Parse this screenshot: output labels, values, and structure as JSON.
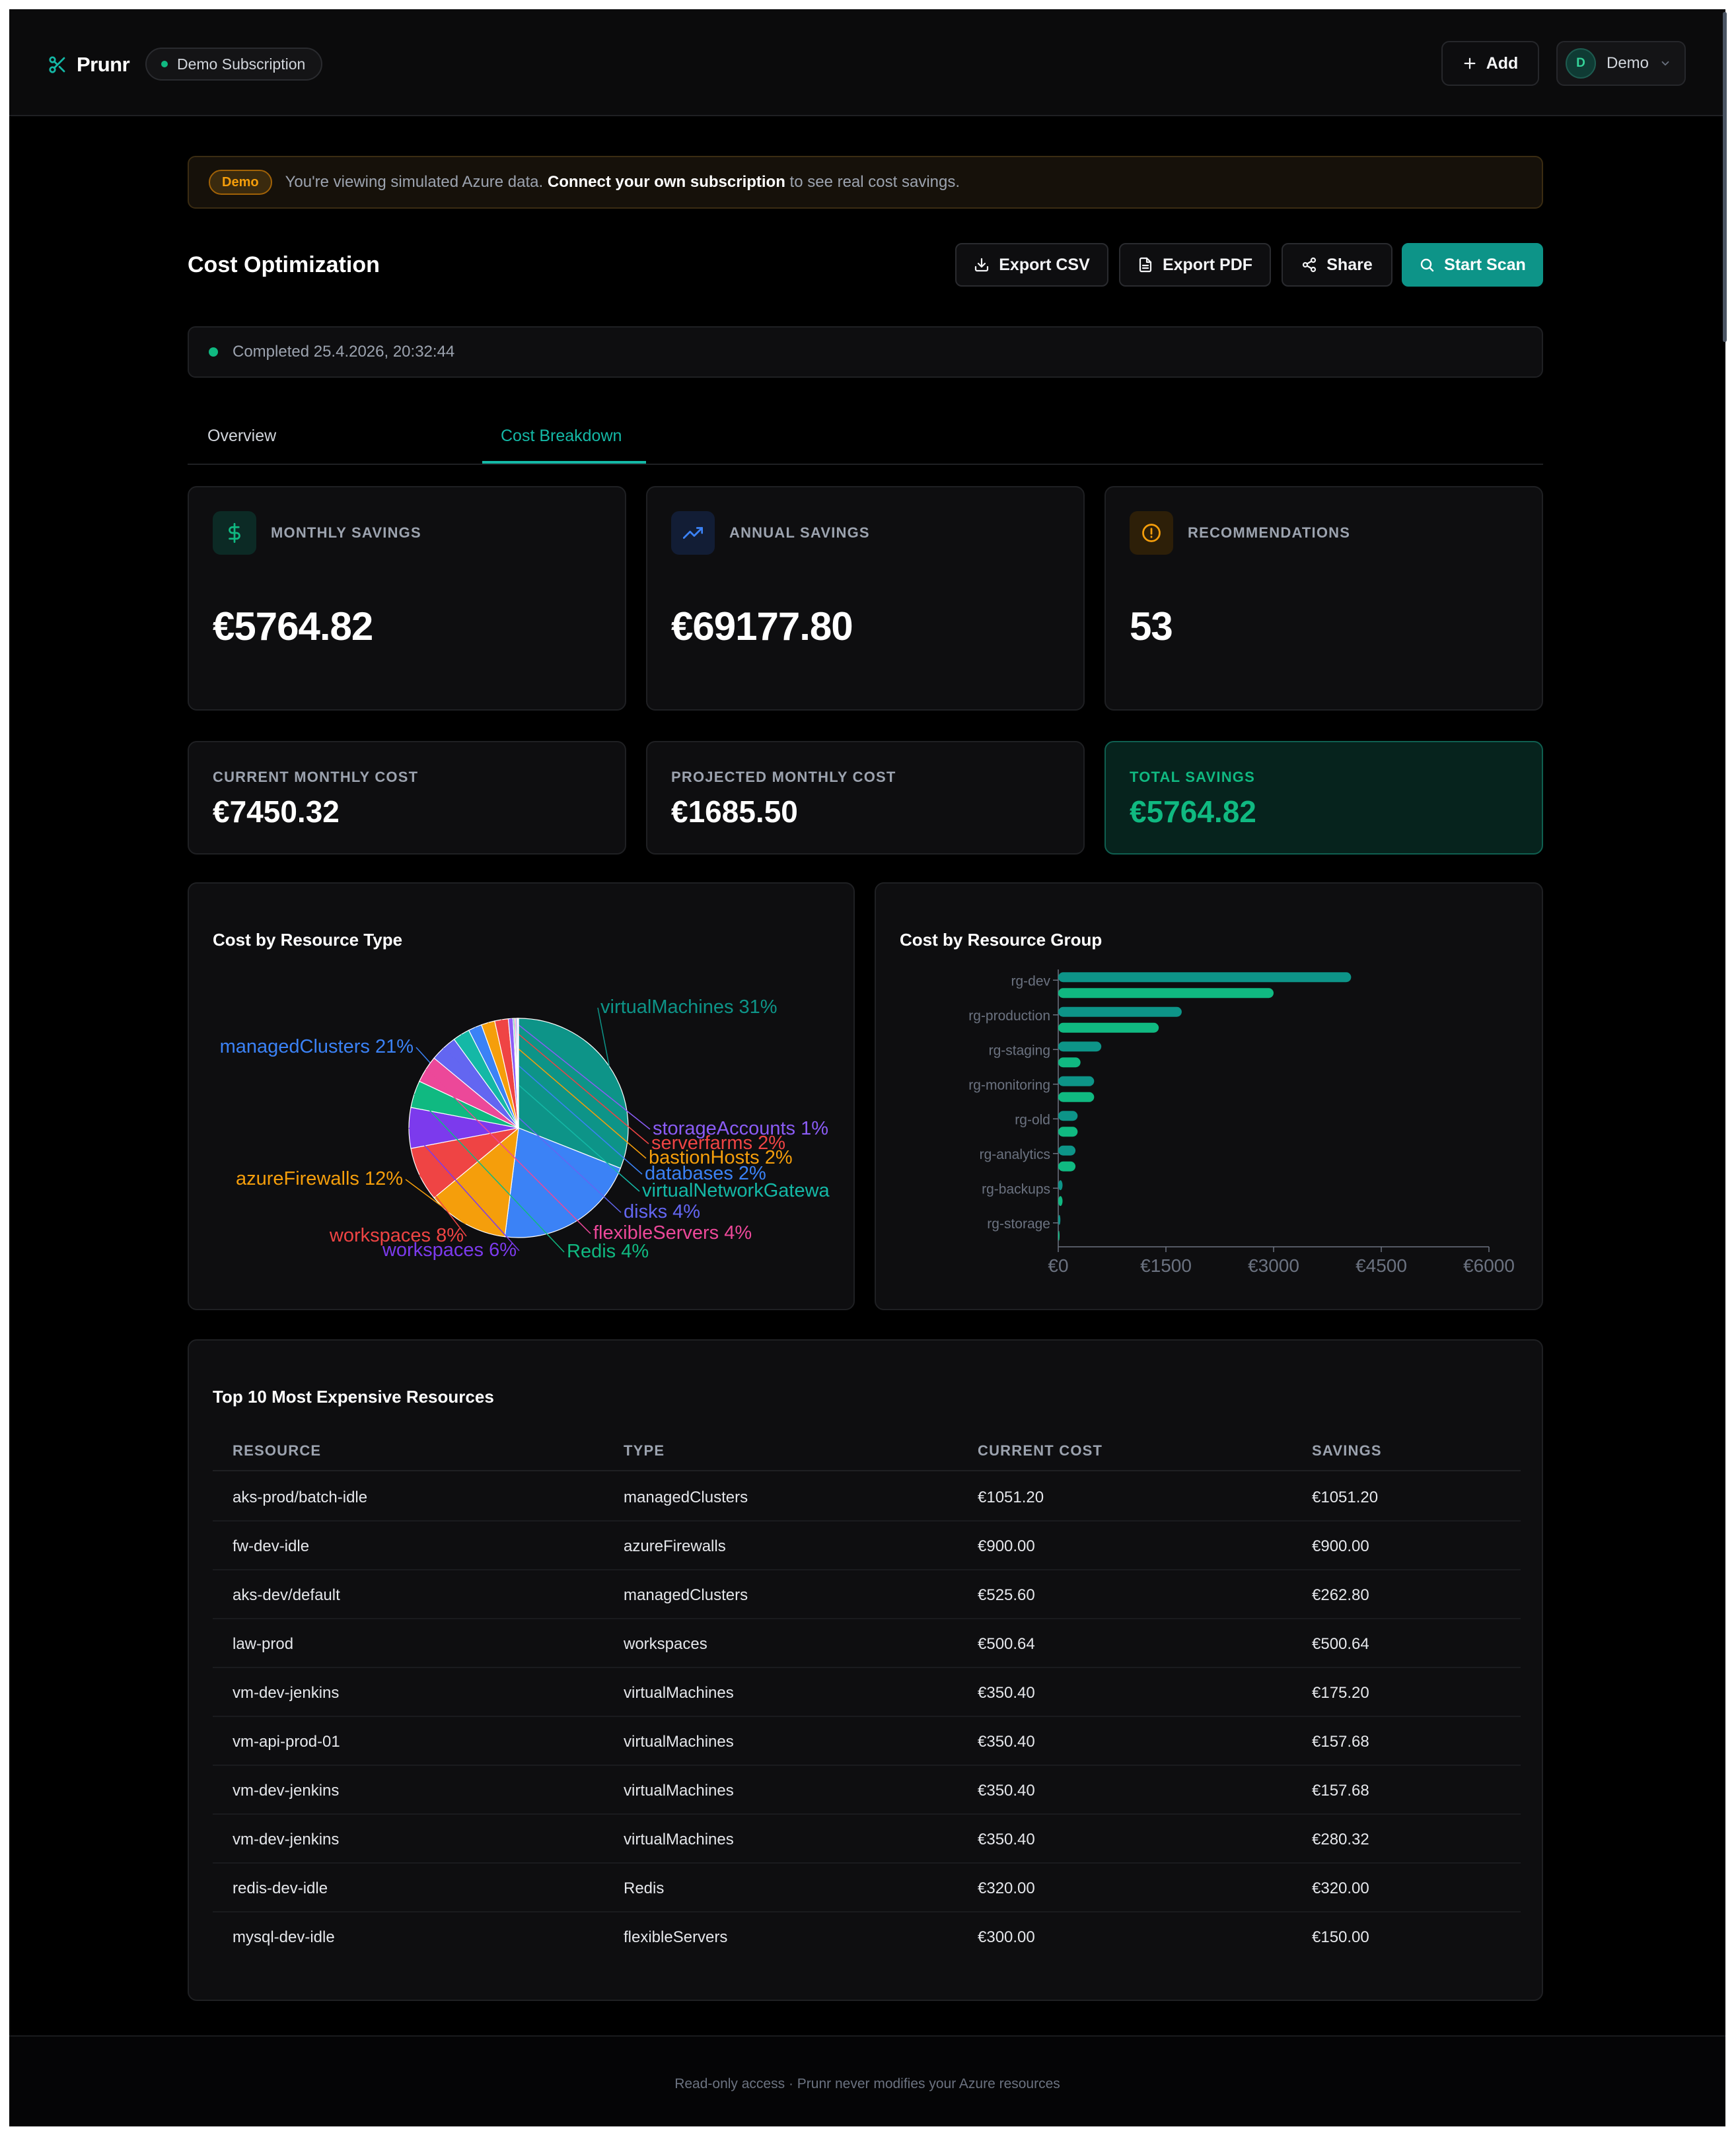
{
  "header": {
    "brand": "Prunr",
    "subscription": "Demo Subscription",
    "add_label": "Add",
    "user_initial": "D",
    "user_name": "Demo"
  },
  "banner": {
    "badge": "Demo",
    "text_prefix": "You're viewing simulated Azure data.",
    "text_link": "Connect your own subscription",
    "text_suffix": "to see real cost savings."
  },
  "page": {
    "title": "Cost Optimization",
    "actions": {
      "export_csv": "Export CSV",
      "export_pdf": "Export PDF",
      "share": "Share",
      "start_scan": "Start Scan"
    },
    "status": "Completed 25.4.2026, 20:32:44"
  },
  "tabs": [
    {
      "label": "Overview",
      "active": false
    },
    {
      "label": "Cost Breakdown",
      "active": true
    }
  ],
  "kpis": [
    {
      "label": "MONTHLY SAVINGS",
      "value": "€5764.82",
      "icon": "dollar-icon"
    },
    {
      "label": "ANNUAL SAVINGS",
      "value": "€69177.80",
      "icon": "trending-up-icon"
    },
    {
      "label": "RECOMMENDATIONS",
      "value": "53",
      "icon": "alert-circle-icon"
    }
  ],
  "summary": [
    {
      "label": "CURRENT MONTHLY COST",
      "value": "€7450.32"
    },
    {
      "label": "PROJECTED MONTHLY COST",
      "value": "€1685.50"
    },
    {
      "label": "TOTAL SAVINGS",
      "value": "€5764.82"
    }
  ],
  "colors": {
    "accent": "#0d9488",
    "accent_text": "#14b8a6",
    "success": "#10b981",
    "warning": "#f59e0b"
  },
  "chart_data": [
    {
      "type": "pie",
      "title": "Cost by Resource Type",
      "slices": [
        {
          "label": "virtualMachines 31%",
          "value": 31,
          "color": "#0d9488"
        },
        {
          "label": "managedClusters 21%",
          "value": 21,
          "color": "#3b82f6"
        },
        {
          "label": "azureFirewalls 12%",
          "value": 12,
          "color": "#f59e0b"
        },
        {
          "label": "workspaces 8%",
          "value": 8,
          "color": "#ef4444"
        },
        {
          "label": "workspaces 6%",
          "value": 6,
          "color": "#7c3aed"
        },
        {
          "label": "Redis 4%",
          "value": 4,
          "color": "#10b981"
        },
        {
          "label": "flexibleServers 4%",
          "value": 4,
          "color": "#ec4899"
        },
        {
          "label": "disks 4%",
          "value": 4,
          "color": "#6366f1"
        },
        {
          "label": "virtualNetworkGatewa",
          "value": 2.5,
          "color": "#14b8a6"
        },
        {
          "label": "databases 2%",
          "value": 2,
          "color": "#3b82f6"
        },
        {
          "label": "bastionHosts 2%",
          "value": 2,
          "color": "#f59e0b"
        },
        {
          "label": "serverfarms 2%",
          "value": 2,
          "color": "#ef4444"
        },
        {
          "label": "storageAccounts 1%",
          "value": 0.7,
          "color": "#8b5cf6"
        },
        {
          "label": "",
          "value": 0.2,
          "color": "#10b981"
        },
        {
          "label": "",
          "value": 0.2,
          "color": "#ec4899"
        },
        {
          "label": "",
          "value": 0.2,
          "color": "#6366f1"
        },
        {
          "label": "",
          "value": 0.1,
          "color": "#14b8a6"
        },
        {
          "label": "",
          "value": 0.1,
          "color": "#3b82f6"
        }
      ]
    },
    {
      "type": "bar",
      "orientation": "horizontal",
      "title": "Cost by Resource Group",
      "categories": [
        "rg-dev",
        "rg-production",
        "rg-staging",
        "rg-monitoring",
        "rg-old",
        "rg-analytics",
        "rg-backups",
        "rg-storage"
      ],
      "series": [
        {
          "values": [
            4080,
            1720,
            600,
            500,
            270,
            240,
            60,
            30
          ],
          "color": "#0d9488"
        },
        {
          "values": [
            3000,
            1400,
            310,
            500,
            270,
            240,
            60,
            10
          ],
          "color": "#10b981"
        }
      ],
      "xlim": [
        0,
        6000
      ],
      "xticks": [
        "€0",
        "€1500",
        "€3000",
        "€4500",
        "€6000"
      ],
      "xtick_values": [
        0,
        1500,
        3000,
        4500,
        6000
      ]
    }
  ],
  "table": {
    "title": "Top 10 Most Expensive Resources",
    "columns": [
      "RESOURCE",
      "TYPE",
      "CURRENT COST",
      "SAVINGS"
    ],
    "rows": [
      [
        "aks-prod/batch-idle",
        "managedClusters",
        "€1051.20",
        "€1051.20"
      ],
      [
        "fw-dev-idle",
        "azureFirewalls",
        "€900.00",
        "€900.00"
      ],
      [
        "aks-dev/default",
        "managedClusters",
        "€525.60",
        "€262.80"
      ],
      [
        "law-prod",
        "workspaces",
        "€500.64",
        "€500.64"
      ],
      [
        "vm-dev-jenkins",
        "virtualMachines",
        "€350.40",
        "€175.20"
      ],
      [
        "vm-api-prod-01",
        "virtualMachines",
        "€350.40",
        "€157.68"
      ],
      [
        "vm-dev-jenkins",
        "virtualMachines",
        "€350.40",
        "€157.68"
      ],
      [
        "vm-dev-jenkins",
        "virtualMachines",
        "€350.40",
        "€280.32"
      ],
      [
        "redis-dev-idle",
        "Redis",
        "€320.00",
        "€320.00"
      ],
      [
        "mysql-dev-idle",
        "flexibleServers",
        "€300.00",
        "€150.00"
      ]
    ]
  },
  "footer": "Read-only access · Prunr never modifies your Azure resources"
}
